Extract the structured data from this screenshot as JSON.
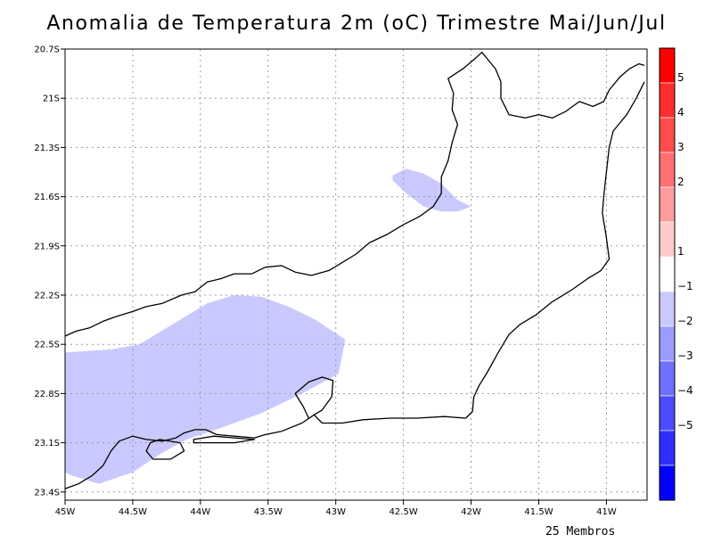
{
  "title": "Anomalia de Temperatura 2m (oC) Trimestre Mai/Jun/Jul",
  "footnote": "25 Membros",
  "chart_data": {
    "type": "heatmap",
    "title": "Anomalia de Temperatura 2m (oC) Trimestre Mai/Jun/Jul",
    "xlim": [
      -45,
      -40.7
    ],
    "ylim": [
      -23.45,
      -20.7
    ],
    "x_ticks": [
      {
        "value": -45,
        "label": "45W"
      },
      {
        "value": -44.5,
        "label": "44.5W"
      },
      {
        "value": -44,
        "label": "44W"
      },
      {
        "value": -43.5,
        "label": "43.5W"
      },
      {
        "value": -43,
        "label": "43W"
      },
      {
        "value": -42.5,
        "label": "42.5W"
      },
      {
        "value": -42,
        "label": "42W"
      },
      {
        "value": -41.5,
        "label": "41.5W"
      },
      {
        "value": -41,
        "label": "41W"
      }
    ],
    "y_ticks": [
      {
        "value": -20.7,
        "label": "20.7S"
      },
      {
        "value": -21,
        "label": "21S"
      },
      {
        "value": -21.3,
        "label": "21.3S"
      },
      {
        "value": -21.6,
        "label": "21.6S"
      },
      {
        "value": -21.9,
        "label": "21.9S"
      },
      {
        "value": -22.2,
        "label": "22.2S"
      },
      {
        "value": -22.5,
        "label": "22.5S"
      },
      {
        "value": -22.8,
        "label": "22.8S"
      },
      {
        "value": -23.1,
        "label": "23.1S"
      },
      {
        "value": -23.4,
        "label": "23.4S"
      }
    ],
    "grid": true,
    "colorbar": {
      "labels": [
        "5",
        "4",
        "3",
        "2",
        "1",
        "−1",
        "−2",
        "−3",
        "−4",
        "−5"
      ],
      "colors": [
        "#ff0000",
        "#ff2e2e",
        "#ff4c4c",
        "#ff7070",
        "#ff9c9c",
        "#ffcaca",
        "#ffffff",
        "#c9c9ff",
        "#9c9cff",
        "#7070ff",
        "#4c4cff",
        "#2e2eff",
        "#0000ff"
      ]
    },
    "anomaly_regions": [
      {
        "class": "-1 to -2",
        "color": "#c9c9ff",
        "polygon": [
          [
            -45.0,
            -22.55
          ],
          [
            -44.65,
            -22.53
          ],
          [
            -44.45,
            -22.5
          ],
          [
            -44.15,
            -22.35
          ],
          [
            -43.95,
            -22.25
          ],
          [
            -43.75,
            -22.2
          ],
          [
            -43.55,
            -22.21
          ],
          [
            -43.35,
            -22.27
          ],
          [
            -43.15,
            -22.35
          ],
          [
            -42.93,
            -22.47
          ],
          [
            -42.98,
            -22.68
          ],
          [
            -43.25,
            -22.8
          ],
          [
            -43.55,
            -22.92
          ],
          [
            -43.85,
            -23.01
          ],
          [
            -44.1,
            -23.08
          ],
          [
            -44.28,
            -23.16
          ],
          [
            -44.5,
            -23.28
          ],
          [
            -44.75,
            -23.35
          ],
          [
            -44.95,
            -23.3
          ],
          [
            -45.0,
            -23.28
          ]
        ]
      },
      {
        "class": "-1 to -2",
        "color": "#c9c9ff",
        "polygon": [
          [
            -42.58,
            -21.47
          ],
          [
            -42.48,
            -21.43
          ],
          [
            -42.35,
            -21.46
          ],
          [
            -42.22,
            -21.52
          ],
          [
            -42.1,
            -21.62
          ],
          [
            -42.0,
            -21.66
          ],
          [
            -42.1,
            -21.69
          ],
          [
            -42.22,
            -21.69
          ],
          [
            -42.35,
            -21.66
          ],
          [
            -42.48,
            -21.58
          ],
          [
            -42.58,
            -21.5
          ]
        ]
      }
    ],
    "state_border": [
      [
        -45.0,
        -22.45
      ],
      [
        -44.92,
        -22.42
      ],
      [
        -44.82,
        -22.4
      ],
      [
        -44.72,
        -22.36
      ],
      [
        -44.62,
        -22.33
      ],
      [
        -44.5,
        -22.3
      ],
      [
        -44.4,
        -22.27
      ],
      [
        -44.28,
        -22.25
      ],
      [
        -44.14,
        -22.2
      ],
      [
        -44.04,
        -22.18
      ],
      [
        -43.95,
        -22.12
      ],
      [
        -43.85,
        -22.1
      ],
      [
        -43.75,
        -22.07
      ],
      [
        -43.62,
        -22.07
      ],
      [
        -43.52,
        -22.03
      ],
      [
        -43.4,
        -22.02
      ],
      [
        -43.3,
        -22.06
      ],
      [
        -43.18,
        -22.08
      ],
      [
        -43.05,
        -22.05
      ],
      [
        -42.95,
        -22.0
      ],
      [
        -42.85,
        -21.95
      ],
      [
        -42.75,
        -21.88
      ],
      [
        -42.62,
        -21.83
      ],
      [
        -42.5,
        -21.77
      ],
      [
        -42.38,
        -21.72
      ],
      [
        -42.28,
        -21.66
      ],
      [
        -42.22,
        -21.58
      ],
      [
        -42.22,
        -21.48
      ],
      [
        -42.17,
        -21.38
      ],
      [
        -42.14,
        -21.27
      ],
      [
        -42.1,
        -21.16
      ],
      [
        -42.14,
        -21.07
      ],
      [
        -42.13,
        -20.97
      ],
      [
        -42.17,
        -20.88
      ],
      [
        -42.06,
        -20.82
      ],
      [
        -41.96,
        -20.75
      ],
      [
        -41.92,
        -20.72
      ],
      [
        -41.88,
        -20.76
      ],
      [
        -41.82,
        -20.82
      ],
      [
        -41.78,
        -20.9
      ],
      [
        -41.78,
        -21.0
      ],
      [
        -41.72,
        -21.1
      ],
      [
        -41.6,
        -21.12
      ],
      [
        -41.5,
        -21.1
      ],
      [
        -41.4,
        -21.12
      ],
      [
        -41.3,
        -21.08
      ],
      [
        -41.2,
        -21.02
      ],
      [
        -41.1,
        -21.05
      ],
      [
        -41.02,
        -21.02
      ],
      [
        -40.98,
        -20.95
      ],
      [
        -40.9,
        -20.87
      ],
      [
        -40.83,
        -20.82
      ],
      [
        -40.76,
        -20.79
      ],
      [
        -40.72,
        -20.8
      ]
    ],
    "coastline": [
      [
        -40.72,
        -20.9
      ],
      [
        -40.78,
        -21.0
      ],
      [
        -40.85,
        -21.1
      ],
      [
        -40.95,
        -21.2
      ],
      [
        -40.98,
        -21.3
      ],
      [
        -41.0,
        -21.45
      ],
      [
        -41.02,
        -21.6
      ],
      [
        -41.03,
        -21.7
      ],
      [
        -41.0,
        -21.85
      ],
      [
        -40.98,
        -21.98
      ],
      [
        -41.04,
        -22.05
      ],
      [
        -41.14,
        -22.1
      ],
      [
        -41.26,
        -22.17
      ],
      [
        -41.4,
        -22.24
      ],
      [
        -41.52,
        -22.32
      ],
      [
        -41.64,
        -22.38
      ],
      [
        -41.72,
        -22.44
      ],
      [
        -41.8,
        -22.55
      ],
      [
        -41.88,
        -22.67
      ],
      [
        -41.94,
        -22.75
      ],
      [
        -41.98,
        -22.82
      ],
      [
        -41.99,
        -22.91
      ],
      [
        -42.04,
        -22.95
      ],
      [
        -42.2,
        -22.94
      ],
      [
        -42.4,
        -22.95
      ],
      [
        -42.6,
        -22.95
      ],
      [
        -42.8,
        -22.96
      ],
      [
        -42.95,
        -22.98
      ],
      [
        -43.1,
        -22.98
      ],
      [
        -43.16,
        -22.93
      ],
      [
        -43.25,
        -22.98
      ],
      [
        -43.4,
        -23.03
      ],
      [
        -43.52,
        -23.05
      ],
      [
        -43.6,
        -23.07
      ],
      [
        -43.75,
        -23.06
      ],
      [
        -43.88,
        -23.05
      ],
      [
        -43.96,
        -23.02
      ],
      [
        -44.04,
        -23.02
      ],
      [
        -44.12,
        -23.04
      ],
      [
        -44.18,
        -23.07
      ],
      [
        -44.28,
        -23.09
      ],
      [
        -44.4,
        -23.08
      ],
      [
        -44.5,
        -23.06
      ],
      [
        -44.6,
        -23.09
      ],
      [
        -44.66,
        -23.15
      ],
      [
        -44.72,
        -23.24
      ],
      [
        -44.8,
        -23.3
      ],
      [
        -44.9,
        -23.35
      ],
      [
        -45.0,
        -23.38
      ]
    ],
    "guanabara_bay": [
      [
        -43.2,
        -22.95
      ],
      [
        -43.24,
        -22.88
      ],
      [
        -43.3,
        -22.8
      ],
      [
        -43.2,
        -22.73
      ],
      [
        -43.1,
        -22.7
      ],
      [
        -43.02,
        -22.72
      ],
      [
        -43.03,
        -22.82
      ],
      [
        -43.1,
        -22.9
      ],
      [
        -43.16,
        -22.93
      ]
    ],
    "marambaia": [
      [
        -44.05,
        -23.08
      ],
      [
        -43.9,
        -23.06
      ],
      [
        -43.75,
        -23.07
      ],
      [
        -43.6,
        -23.08
      ],
      [
        -43.75,
        -23.1
      ],
      [
        -43.9,
        -23.1
      ],
      [
        -44.05,
        -23.1
      ]
    ],
    "ilha_grande": [
      [
        -44.37,
        -23.1
      ],
      [
        -44.3,
        -23.08
      ],
      [
        -44.15,
        -23.1
      ],
      [
        -44.12,
        -23.15
      ],
      [
        -44.22,
        -23.2
      ],
      [
        -44.35,
        -23.2
      ],
      [
        -44.4,
        -23.15
      ],
      [
        -44.37,
        -23.1
      ]
    ]
  }
}
